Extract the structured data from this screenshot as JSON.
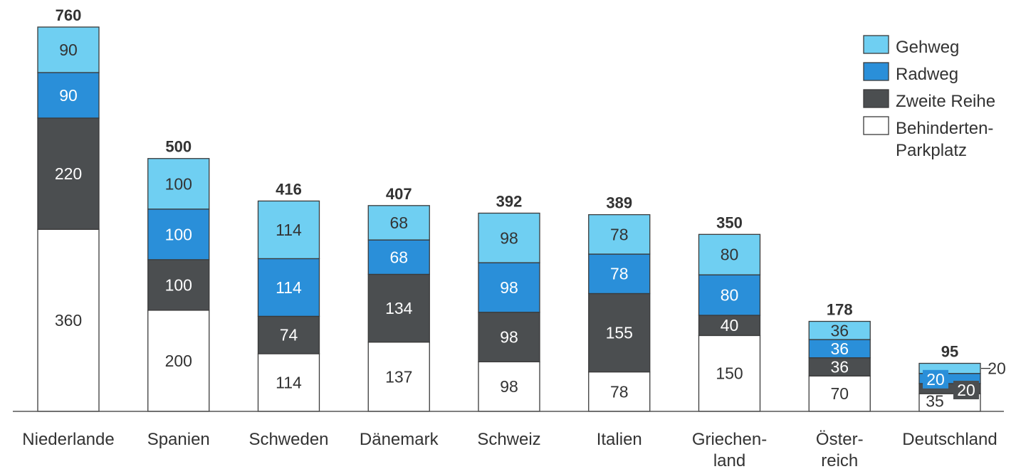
{
  "chart_data": {
    "type": "bar",
    "stacked": true,
    "categories": [
      "Niederlande",
      "Spanien",
      "Schweden",
      "Dänemark",
      "Schweiz",
      "Italien",
      "Griechen-\nland",
      "Öster-\nreich",
      "Deutschland"
    ],
    "totals": [
      760,
      500,
      416,
      407,
      392,
      389,
      350,
      178,
      95
    ],
    "series": [
      {
        "name": "Behinderten-\nParkplatz",
        "color": "#ffffff",
        "label_color": "#333333",
        "values": [
          360,
          200,
          114,
          137,
          98,
          78,
          150,
          70,
          35
        ]
      },
      {
        "name": "Zweite Reihe",
        "color": "#4b4e50",
        "label_color": "#ffffff",
        "values": [
          220,
          100,
          74,
          134,
          98,
          155,
          40,
          36,
          20
        ]
      },
      {
        "name": "Radweg",
        "color": "#2a8fd9",
        "label_color": "#ffffff",
        "values": [
          90,
          100,
          114,
          68,
          98,
          78,
          80,
          36,
          20
        ]
      },
      {
        "name": "Gehweg",
        "color": "#6fcff2",
        "label_color": "#333333",
        "values": [
          90,
          100,
          114,
          68,
          98,
          78,
          80,
          36,
          20
        ]
      }
    ],
    "ylim": [
      0,
      760
    ],
    "grid": false,
    "legend_position": "top-right"
  }
}
